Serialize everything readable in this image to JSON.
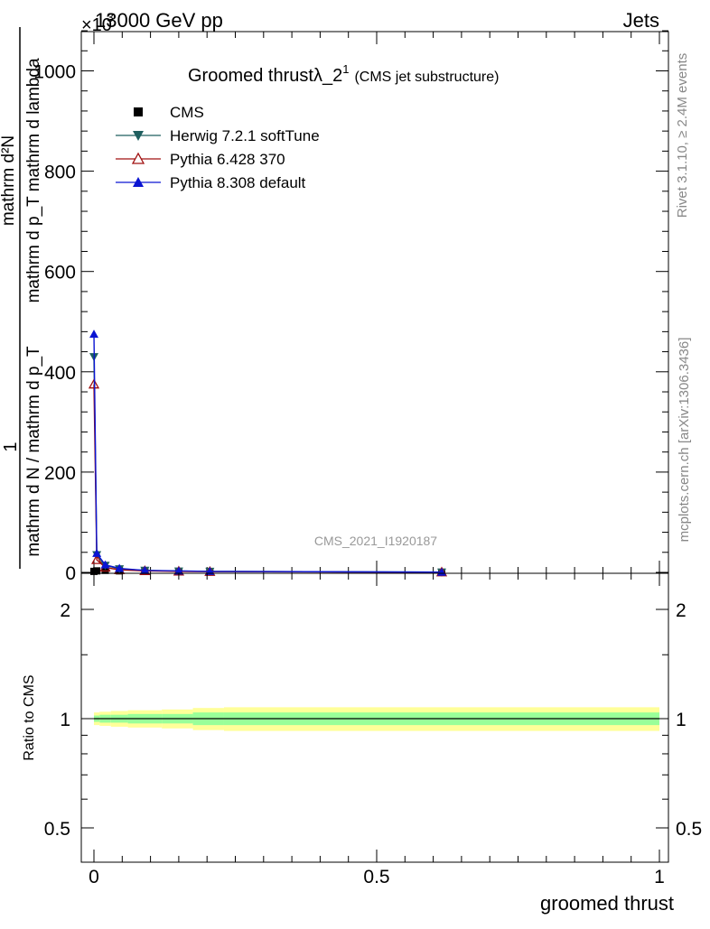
{
  "header": {
    "energy_label": "13000 GeV pp",
    "process_label": "Jets",
    "scale_label": "×10",
    "scale_exponent": "3"
  },
  "side_labels": {
    "rivet": "Rivet 3.1.10, ≥ 2.4M events",
    "mcplots": "mcplots.cern.ch [arXiv:1306.3436]"
  },
  "chart_data": [
    {
      "type": "line",
      "title": "Groomed thrustλ_2",
      "title_sup": "1",
      "subtitle": "(CMS jet substructure)",
      "analysis_id": "CMS_2021_I1920187",
      "xlabel": "",
      "ylabel_numerator": "mathrm d²N",
      "ylabel_denominator": "mathrm d p_T mathrm d lambda",
      "ylabel_prefix_num": "1",
      "ylabel_prefix_den": "mathrm d N / mathrm d p_T",
      "xlim": [
        -0.02,
        1.0
      ],
      "ylim": [
        0,
        1080
      ],
      "y_unit_scale": 1000,
      "x_ticks": [
        "0",
        "0.5",
        "1"
      ],
      "y_ticks": [
        "0",
        "200",
        "400",
        "600",
        "800",
        "1000"
      ],
      "grid": false,
      "legend_position": "top-left",
      "series": [
        {
          "name": "CMS",
          "color": "#000000",
          "marker": "square",
          "x": [
            0.0,
            0.005,
            0.02,
            0.045,
            0.09,
            0.15,
            0.205,
            0.615
          ],
          "y": [
            2,
            3,
            4,
            3,
            2,
            2,
            1.5,
            0.3
          ]
        },
        {
          "name": "Herwig 7.2.1 softTune",
          "color": "#1f5f5f",
          "marker": "triangle-down",
          "x": [
            0.0,
            0.005,
            0.02,
            0.045,
            0.09,
            0.15,
            0.205,
            0.615
          ],
          "y": [
            430,
            35,
            14,
            7,
            4,
            2.5,
            2,
            0.5
          ]
        },
        {
          "name": "Pythia 6.428 370",
          "color": "#a01010",
          "marker": "triangle-open",
          "x": [
            0.0,
            0.005,
            0.02,
            0.045,
            0.09,
            0.15,
            0.205,
            0.615
          ],
          "y": [
            375,
            25,
            10,
            5,
            3,
            2,
            1.5,
            0.4
          ]
        },
        {
          "name": "Pythia 8.308 default",
          "color": "#0a14d2",
          "marker": "triangle-up",
          "x": [
            0.0,
            0.005,
            0.02,
            0.045,
            0.09,
            0.15,
            0.205,
            0.615
          ],
          "y": [
            475,
            38,
            15,
            8,
            4,
            3,
            2,
            0.5
          ]
        }
      ]
    },
    {
      "type": "area",
      "xlabel": "groomed thrust",
      "ylabel": "Ratio to CMS",
      "xlim": [
        -0.02,
        1.0
      ],
      "ylim": [
        0.4,
        2.3
      ],
      "y_ticks": [
        "0.5",
        "1",
        "2"
      ],
      "x_ticks": [
        "0",
        "0.5",
        "1"
      ],
      "band_colors": {
        "outer": "#ffff99",
        "inner": "#99ff99",
        "line": "#000000"
      },
      "bands": {
        "x_edges": [
          0.0,
          0.01,
          0.03,
          0.06,
          0.12,
          0.175,
          0.23,
          1.0
        ],
        "outer_lo": [
          0.96,
          0.955,
          0.95,
          0.945,
          0.94,
          0.93,
          0.925
        ],
        "outer_hi": [
          1.04,
          1.045,
          1.05,
          1.055,
          1.06,
          1.07,
          1.075
        ],
        "inner_lo": [
          0.98,
          0.975,
          0.975,
          0.97,
          0.97,
          0.96,
          0.96
        ],
        "inner_hi": [
          1.02,
          1.025,
          1.025,
          1.03,
          1.03,
          1.04,
          1.04
        ]
      },
      "reference": 1
    }
  ]
}
